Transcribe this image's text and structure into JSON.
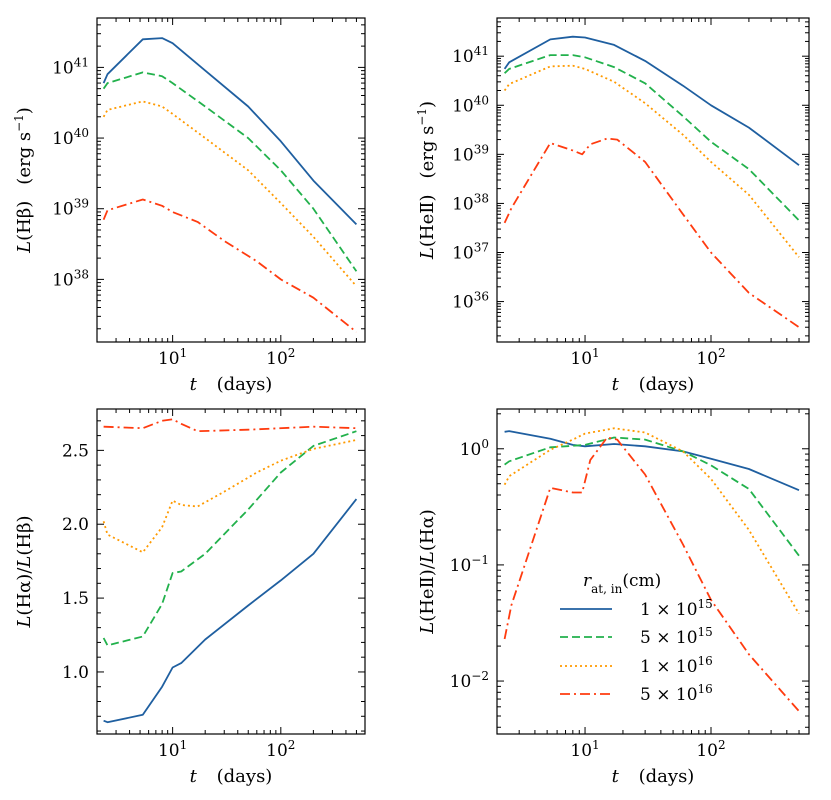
{
  "figure": {
    "x_axis_label": {
      "var": "t",
      "units": "(days)"
    },
    "x_ticks": [
      {
        "value": 10,
        "base": "10",
        "exp": "1"
      },
      {
        "value": 100,
        "base": "10",
        "exp": "2"
      }
    ]
  },
  "legend": {
    "title": "r",
    "title_sub": "at, in",
    "title_units": "(cm)",
    "entries": [
      {
        "mant": "1",
        "exp": "15"
      },
      {
        "mant": "5",
        "exp": "15"
      },
      {
        "mant": "1",
        "exp": "16"
      },
      {
        "mant": "5",
        "exp": "16"
      }
    ]
  },
  "colors": {
    "series": [
      "#1f5fa0",
      "#22b14c",
      "#ff9a00",
      "#ff3b0f"
    ]
  },
  "chart_data": [
    {
      "type": "line",
      "title": "",
      "xscale": "log",
      "yscale": "log",
      "xlim": [
        2,
        600
      ],
      "ylim": [
        1.3e+37,
        5e+41
      ],
      "ylabel": "L(Hβ)   (erg s⁻¹)",
      "ylabel_parts": {
        "l": "L",
        "inner": "Hβ",
        "units": "(erg s",
        "units_exp": "−1",
        "units_close": ")"
      },
      "y_ticks": [
        {
          "value": 1e+38,
          "base": "10",
          "exp": "38"
        },
        {
          "value": 1e+39,
          "base": "10",
          "exp": "39"
        },
        {
          "value": 1e+40,
          "base": "10",
          "exp": "40"
        },
        {
          "value": 1e+41,
          "base": "10",
          "exp": "41"
        }
      ],
      "series": [
        {
          "name": "1 × 10^15",
          "x": [
            2.3,
            2.5,
            5.3,
            8,
            10,
            20,
            50,
            100,
            200,
            500
          ],
          "y": [
            6e+40,
            8e+40,
            2.5e+41,
            2.6e+41,
            2.2e+41,
            9e+40,
            2.8e+40,
            9e+39,
            2.5e+39,
            6e+38
          ]
        },
        {
          "name": "5 × 10^15",
          "x": [
            2.3,
            2.5,
            5.3,
            8,
            10,
            20,
            50,
            100,
            200,
            500
          ],
          "y": [
            5e+40,
            6e+40,
            8.5e+40,
            7.5e+40,
            6e+40,
            2.8e+40,
            1e+40,
            3.5e+39,
            1e+39,
            1.3e+38
          ]
        },
        {
          "name": "1 × 10^16",
          "x": [
            2.3,
            2.5,
            5.3,
            8,
            10,
            20,
            50,
            100,
            200,
            500
          ],
          "y": [
            2e+40,
            2.5e+40,
            3.3e+40,
            2.8e+40,
            2.2e+40,
            1e+40,
            3.5e+39,
            1.2e+39,
            4e+38,
            8e+37
          ]
        },
        {
          "name": "5 × 10^16",
          "x": [
            2.3,
            2.5,
            5.3,
            8,
            10,
            17,
            30,
            60,
            100,
            200,
            500
          ],
          "y": [
            7e+38,
            9.5e+38,
            1.35e+39,
            1.1e+39,
            9e+38,
            6.5e+38,
            3.5e+38,
            1.8e+38,
            1e+38,
            5.5e+37,
            1.8e+37
          ]
        }
      ]
    },
    {
      "type": "line",
      "title": "",
      "xscale": "log",
      "yscale": "log",
      "xlim": [
        2,
        600
      ],
      "ylim": [
        1.5e+35,
        6e+41
      ],
      "ylabel": "L(HeII)   (erg s⁻¹)",
      "ylabel_parts": {
        "l": "L",
        "inner": "HeⅡ",
        "units": "(erg s",
        "units_exp": "−1",
        "units_close": ")"
      },
      "y_ticks": [
        {
          "value": 1e+36,
          "base": "10",
          "exp": "36"
        },
        {
          "value": 1e+37,
          "base": "10",
          "exp": "37"
        },
        {
          "value": 1e+38,
          "base": "10",
          "exp": "38"
        },
        {
          "value": 1e+39,
          "base": "10",
          "exp": "39"
        },
        {
          "value": 1e+40,
          "base": "10",
          "exp": "40"
        },
        {
          "value": 1e+41,
          "base": "10",
          "exp": "41"
        }
      ],
      "series": [
        {
          "name": "1 × 10^15",
          "x": [
            2.3,
            2.5,
            5.3,
            8,
            10,
            17,
            30,
            60,
            100,
            200,
            500
          ],
          "y": [
            5.5e+40,
            7.5e+40,
            2.2e+41,
            2.5e+41,
            2.4e+41,
            1.7e+41,
            8e+40,
            2.5e+40,
            1e+40,
            3.5e+39,
            6e+38
          ]
        },
        {
          "name": "5 × 10^15",
          "x": [
            2.3,
            2.5,
            5.3,
            8,
            10,
            17,
            30,
            60,
            100,
            200,
            500
          ],
          "y": [
            4.5e+40,
            5.5e+40,
            1.05e+41,
            1.05e+41,
            9.5e+40,
            6e+40,
            2.8e+40,
            6e+39,
            1.8e+39,
            5e+38,
            4.5e+37
          ]
        },
        {
          "name": "1 × 10^16",
          "x": [
            2.3,
            2.5,
            5.3,
            8,
            10,
            17,
            30,
            60,
            100,
            200,
            500
          ],
          "y": [
            2e+40,
            2.7e+40,
            6.2e+40,
            6.4e+40,
            5.5e+40,
            3e+40,
            1.1e+40,
            2.5e+39,
            7e+38,
            1.5e+38,
            8e+36
          ]
        },
        {
          "name": "5 × 10^16",
          "x": [
            2.3,
            2.6,
            5.3,
            8,
            9.5,
            11,
            15,
            18,
            30,
            60,
            100,
            200,
            500
          ],
          "y": [
            4e+37,
            8e+37,
            1.7e+39,
            1.2e+39,
            1e+39,
            1.6e+39,
            2.1e+39,
            2e+39,
            7e+38,
            6e+37,
            1e+37,
            1.5e+36,
            3e+35
          ]
        }
      ]
    },
    {
      "type": "line",
      "title": "",
      "xscale": "log",
      "yscale": "linear",
      "xlim": [
        2,
        600
      ],
      "ylim": [
        0.58,
        2.78
      ],
      "ylabel": "L(Hα)/L(Hβ)",
      "ylabel_parts": {
        "l": "L",
        "inner": "Hα",
        "l2": "L",
        "inner2": "Hβ"
      },
      "y_ticks": [
        {
          "value": 1.0,
          "text": "1.0"
        },
        {
          "value": 1.5,
          "text": "1.5"
        },
        {
          "value": 2.0,
          "text": "2.0"
        },
        {
          "value": 2.5,
          "text": "2.5"
        }
      ],
      "series": [
        {
          "name": "1 × 10^15",
          "x": [
            2.3,
            2.5,
            5.3,
            8,
            10,
            12,
            20,
            50,
            100,
            200,
            500
          ],
          "y": [
            0.67,
            0.66,
            0.71,
            0.9,
            1.03,
            1.06,
            1.22,
            1.45,
            1.62,
            1.8,
            2.17
          ]
        },
        {
          "name": "5 × 10^15",
          "x": [
            2.3,
            2.5,
            5.3,
            8,
            10,
            12,
            20,
            50,
            100,
            200,
            500
          ],
          "y": [
            1.23,
            1.18,
            1.24,
            1.46,
            1.67,
            1.68,
            1.8,
            2.1,
            2.35,
            2.53,
            2.63
          ]
        },
        {
          "name": "1 × 10^16",
          "x": [
            2.3,
            2.5,
            5.3,
            8,
            10,
            12,
            17,
            30,
            60,
            100,
            200,
            500
          ],
          "y": [
            2.02,
            1.93,
            1.81,
            1.98,
            2.16,
            2.13,
            2.12,
            2.22,
            2.35,
            2.43,
            2.51,
            2.57
          ]
        },
        {
          "name": "5 × 10^16",
          "x": [
            2.3,
            5.3,
            8,
            10,
            12,
            17,
            50,
            200,
            500
          ],
          "y": [
            2.66,
            2.65,
            2.7,
            2.71,
            2.68,
            2.63,
            2.64,
            2.66,
            2.65
          ]
        }
      ]
    },
    {
      "type": "line",
      "title": "",
      "xscale": "log",
      "yscale": "log",
      "xlim": [
        2,
        600
      ],
      "ylim": [
        0.0035,
        2.2
      ],
      "ylabel": "L(HeII)/L(Hα)",
      "ylabel_parts": {
        "l": "L",
        "inner": "HeⅡ",
        "l2": "L",
        "inner2": "Hα"
      },
      "y_ticks": [
        {
          "value": 0.01,
          "base": "10",
          "exp": "−2"
        },
        {
          "value": 0.1,
          "base": "10",
          "exp": "−1"
        },
        {
          "value": 1,
          "base": "10",
          "exp": "0"
        }
      ],
      "series": [
        {
          "name": "1 × 10^15",
          "x": [
            2.3,
            2.5,
            5.3,
            8,
            10,
            17,
            30,
            60,
            100,
            200,
            500
          ],
          "y": [
            1.4,
            1.42,
            1.22,
            1.08,
            1.05,
            1.1,
            1.05,
            0.95,
            0.82,
            0.67,
            0.44
          ]
        },
        {
          "name": "5 × 10^15",
          "x": [
            2.3,
            2.5,
            5.3,
            8,
            10,
            17,
            30,
            60,
            100,
            200,
            500
          ],
          "y": [
            0.73,
            0.78,
            1.03,
            1.06,
            1.08,
            1.25,
            1.2,
            0.95,
            0.72,
            0.45,
            0.12
          ]
        },
        {
          "name": "1 × 10^16",
          "x": [
            2.3,
            2.5,
            5.3,
            8,
            10,
            17,
            30,
            60,
            100,
            200,
            500
          ],
          "y": [
            0.49,
            0.58,
            0.98,
            1.2,
            1.35,
            1.5,
            1.38,
            0.95,
            0.55,
            0.2,
            0.038
          ]
        },
        {
          "name": "5 × 10^16",
          "x": [
            2.3,
            2.6,
            5.3,
            8,
            9.5,
            11,
            15,
            18,
            30,
            60,
            100,
            200,
            500
          ],
          "y": [
            0.023,
            0.045,
            0.46,
            0.42,
            0.42,
            0.8,
            1.25,
            1.2,
            0.6,
            0.15,
            0.05,
            0.017,
            0.0055
          ]
        }
      ]
    }
  ]
}
